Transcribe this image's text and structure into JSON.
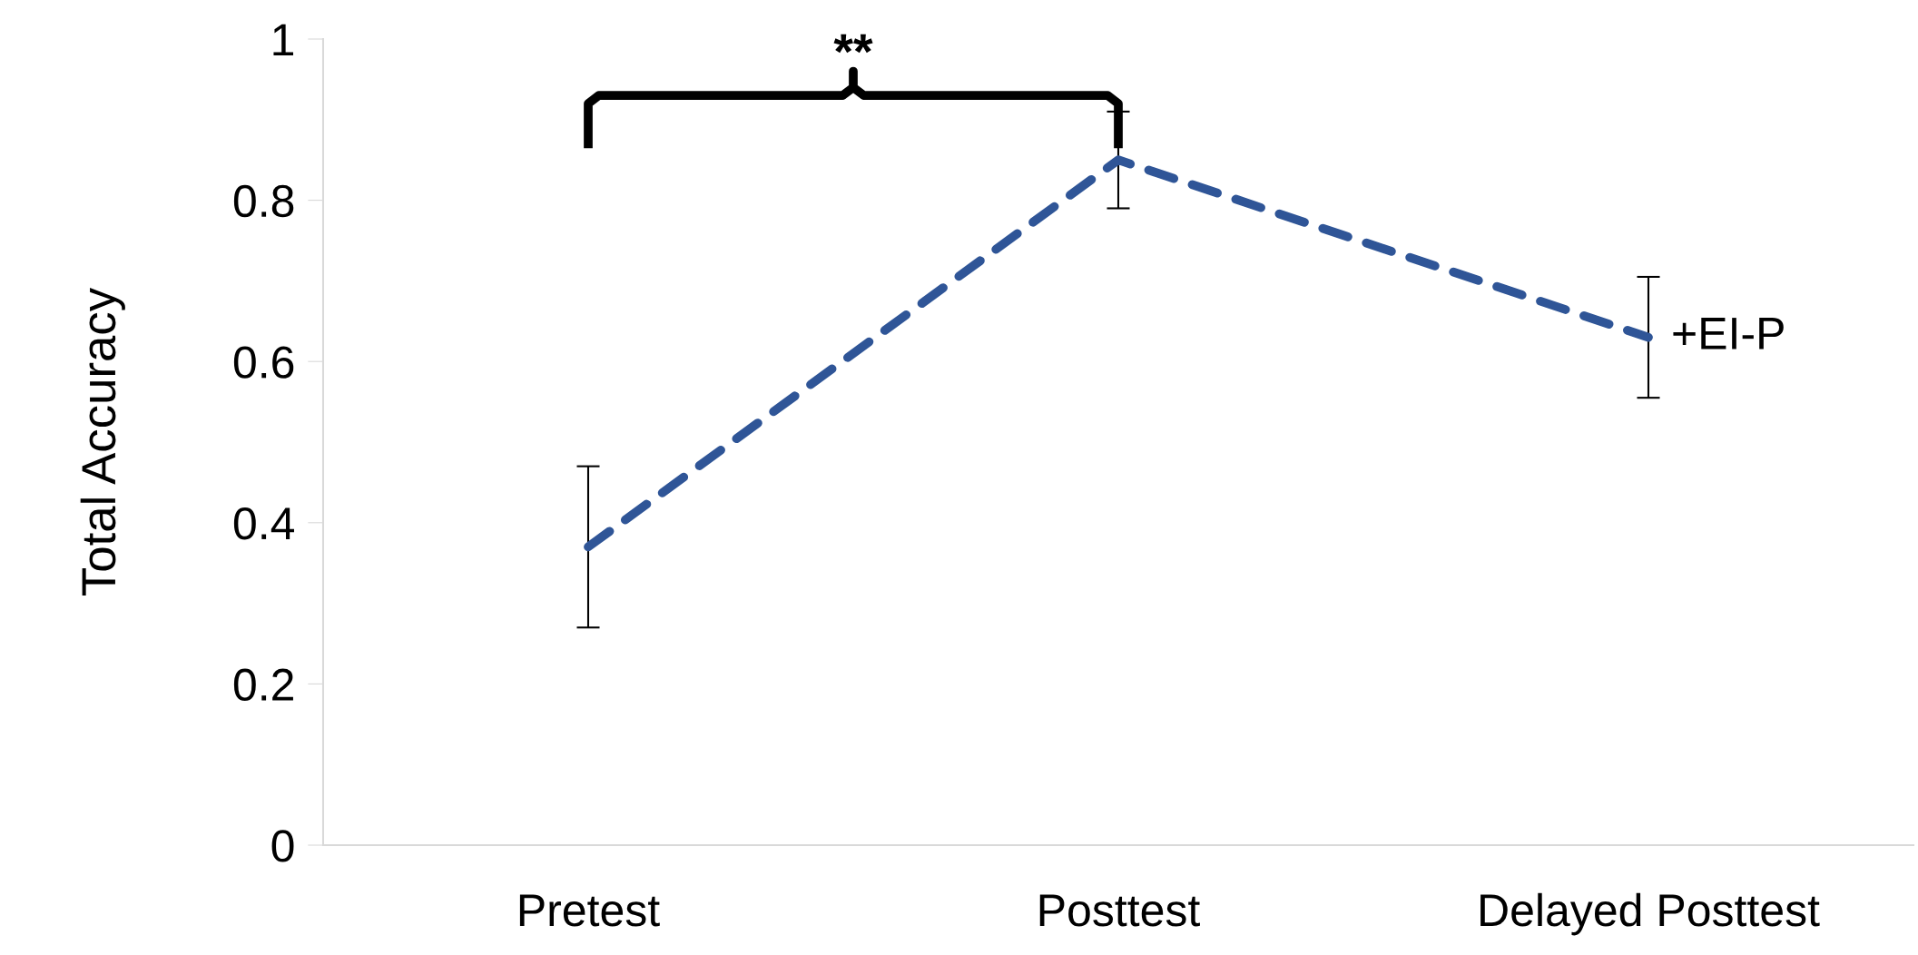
{
  "chart_data": {
    "type": "line",
    "ylabel": "Total Accuracy",
    "categories": [
      "Pretest",
      "Posttest",
      "Delayed Posttest"
    ],
    "series": [
      {
        "name": "+EI-P",
        "color": "#2f5597",
        "values": [
          0.37,
          0.85,
          0.63
        ],
        "errors": [
          0.1,
          0.06,
          0.075
        ]
      }
    ],
    "ylim": [
      0,
      1
    ],
    "yticks": [
      0,
      0.2,
      0.4,
      0.6,
      0.8,
      1
    ],
    "grid": false,
    "legend": false,
    "line_style": "dashed",
    "marker": "none",
    "annotations": [
      "**"
    ]
  }
}
